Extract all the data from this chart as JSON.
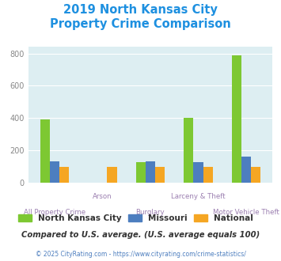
{
  "title_line1": "2019 North Kansas City",
  "title_line2": "Property Crime Comparison",
  "categories": [
    "All Property Crime",
    "Arson",
    "Burglary",
    "Larceny & Theft",
    "Motor Vehicle Theft"
  ],
  "series": {
    "North Kansas City": [
      390,
      0,
      125,
      400,
      790
    ],
    "Missouri": [
      130,
      0,
      130,
      125,
      160
    ],
    "National": [
      100,
      100,
      100,
      100,
      100
    ]
  },
  "colors": {
    "North Kansas City": "#7dc832",
    "Missouri": "#4d7ebf",
    "National": "#f5a623"
  },
  "ylim": [
    0,
    840
  ],
  "yticks": [
    0,
    200,
    400,
    600,
    800
  ],
  "title_color": "#1e90e0",
  "title_fontsize": 10.5,
  "axis_bg_color": "#ddeef2",
  "fig_bg_color": "#ffffff",
  "xlabel_color": "#9b7fb0",
  "tick_color": "#888888",
  "footer_text": "Compared to U.S. average. (U.S. average equals 100)",
  "footer_color": "#333333",
  "copyright_text": "© 2025 CityRating.com - https://www.cityrating.com/crime-statistics/",
  "copyright_color": "#4d7ebf",
  "bar_width": 0.2
}
